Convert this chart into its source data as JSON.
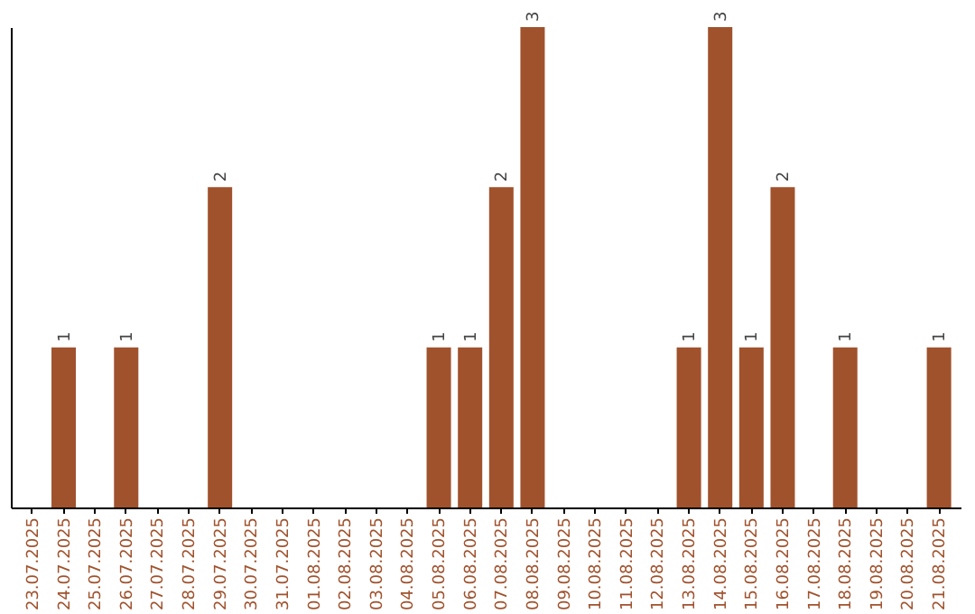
{
  "chart_data": {
    "type": "bar",
    "categories": [
      "23.07.2025",
      "24.07.2025",
      "25.07.2025",
      "26.07.2025",
      "27.07.2025",
      "28.07.2025",
      "29.07.2025",
      "30.07.2025",
      "31.07.2025",
      "01.08.2025",
      "02.08.2025",
      "03.08.2025",
      "04.08.2025",
      "05.08.2025",
      "06.08.2025",
      "07.08.2025",
      "08.08.2025",
      "09.08.2025",
      "10.08.2025",
      "11.08.2025",
      "12.08.2025",
      "13.08.2025",
      "14.08.2025",
      "15.08.2025",
      "16.08.2025",
      "17.08.2025",
      "18.08.2025",
      "19.08.2025",
      "20.08.2025",
      "21.08.2025"
    ],
    "values": [
      0,
      1,
      0,
      1,
      0,
      0,
      2,
      0,
      0,
      0,
      0,
      0,
      0,
      1,
      1,
      2,
      3,
      0,
      0,
      0,
      0,
      1,
      3,
      1,
      2,
      0,
      1,
      0,
      0,
      1
    ],
    "value_labels": [
      null,
      "1",
      null,
      "1",
      null,
      null,
      "2",
      null,
      null,
      null,
      null,
      null,
      null,
      "1",
      "1",
      "2",
      "3",
      null,
      null,
      null,
      null,
      "1",
      "3",
      "1",
      "2",
      null,
      "1",
      null,
      null,
      "1"
    ],
    "color": "#a0522d",
    "tick_labels": "x"
  }
}
